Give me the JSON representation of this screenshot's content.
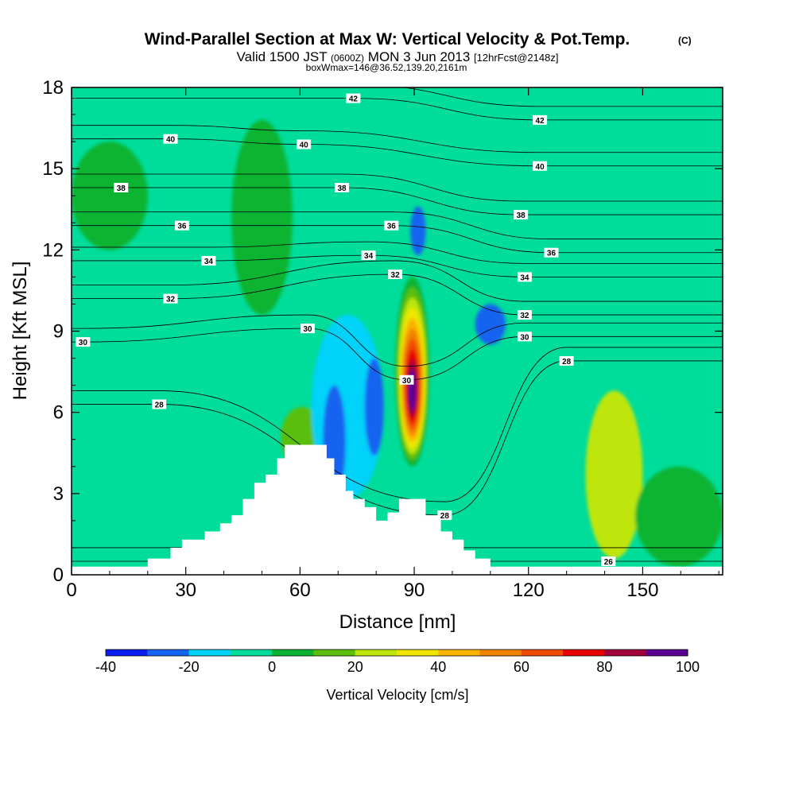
{
  "chart_data": {
    "type": "heatmap",
    "title": "Wind-Parallel Section at Max W: Vertical Velocity & Pot.Temp.",
    "title_mark": "(C)",
    "subtitle": {
      "valid": "Valid 1500 JST",
      "utc": "(0600Z)",
      "date": "MON 3 Jun 2013",
      "forecast": "[12hrFcst@2148z]"
    },
    "subtitle2": "boxWmax=146@36.52,139.20,2161m",
    "xlabel": "Distance [nm]",
    "ylabel": "Height [Kft MSL]",
    "xlim": [
      0,
      171
    ],
    "ylim": [
      0,
      18
    ],
    "xticks": [
      "0",
      "30",
      "60",
      "90",
      "120",
      "150"
    ],
    "yticks": [
      "0",
      "3",
      "6",
      "9",
      "12",
      "15",
      "18"
    ],
    "colorbar": {
      "label": "Vertical Velocity [cm/s]",
      "ticks": [
        "-40",
        "-20",
        "0",
        "20",
        "40",
        "60",
        "80",
        "100"
      ],
      "bounds": [
        -40,
        -30,
        -20,
        -10,
        0,
        10,
        20,
        30,
        40,
        50,
        60,
        70,
        80,
        90,
        100
      ],
      "colors": [
        "#0a1ef0",
        "#1464f0",
        "#00d2fa",
        "#00dc9a",
        "#0ab432",
        "#5abe0a",
        "#bee60a",
        "#f0e600",
        "#fab400",
        "#f08200",
        "#f04b00",
        "#e60000",
        "#a0003c",
        "#5a0096"
      ]
    },
    "background_class": {
      "range": [
        -10,
        0
      ],
      "color": "#00dc9a"
    },
    "updraft_regions": [
      {
        "x_range": [
          0,
          20
        ],
        "y_range": [
          12,
          16
        ],
        "w_class": [
          0,
          10
        ]
      },
      {
        "x_range": [
          42,
          58
        ],
        "y_range": [
          9.6,
          16.8
        ],
        "w_class": [
          0,
          10
        ]
      },
      {
        "x_range": [
          55,
          66
        ],
        "y_range": [
          4,
          6.2
        ],
        "w_class": [
          10,
          20
        ]
      },
      {
        "x_range": [
          135,
          150
        ],
        "y_range": [
          0.6,
          6.8
        ],
        "w_class": [
          20,
          30
        ]
      },
      {
        "x_range": [
          85,
          94
        ],
        "y_range": [
          4,
          11
        ],
        "w_class": [
          90,
          100
        ],
        "core_max_cm_s": 146
      },
      {
        "x_range": [
          148,
          171
        ],
        "y_range": [
          0.3,
          4
        ],
        "w_class": [
          0,
          10
        ]
      }
    ],
    "downdraft_regions": [
      {
        "x_range": [
          63,
          82
        ],
        "y_range": [
          2.8,
          9.6
        ],
        "w_class": [
          -20,
          -10
        ]
      },
      {
        "x_range": [
          66,
          72
        ],
        "y_range": [
          2.8,
          7
        ],
        "w_class": [
          -30,
          -20
        ]
      },
      {
        "x_range": [
          77,
          82
        ],
        "y_range": [
          4.4,
          8
        ],
        "w_class": [
          -30,
          -20
        ]
      },
      {
        "x_range": [
          89,
          93
        ],
        "y_range": [
          11.8,
          13.6
        ],
        "w_class": [
          -30,
          -20
        ]
      },
      {
        "x_range": [
          106,
          114
        ],
        "y_range": [
          8.5,
          10
        ],
        "w_class": [
          -30,
          -20
        ]
      }
    ],
    "terrain": [
      {
        "x": 0,
        "y": 0.3
      },
      {
        "x": 19,
        "y": 0.3
      },
      {
        "x": 20,
        "y": 0.6
      },
      {
        "x": 26,
        "y": 1.0
      },
      {
        "x": 29,
        "y": 1.3
      },
      {
        "x": 35,
        "y": 1.6
      },
      {
        "x": 39,
        "y": 1.9
      },
      {
        "x": 42,
        "y": 2.2
      },
      {
        "x": 45,
        "y": 2.8
      },
      {
        "x": 48,
        "y": 3.4
      },
      {
        "x": 51,
        "y": 3.7
      },
      {
        "x": 54,
        "y": 4.3
      },
      {
        "x": 56,
        "y": 4.8
      },
      {
        "x": 65,
        "y": 4.8
      },
      {
        "x": 67,
        "y": 4.3
      },
      {
        "x": 69,
        "y": 3.7
      },
      {
        "x": 72,
        "y": 3.1
      },
      {
        "x": 74,
        "y": 2.8
      },
      {
        "x": 77,
        "y": 2.5
      },
      {
        "x": 80,
        "y": 2.0
      },
      {
        "x": 83,
        "y": 2.3
      },
      {
        "x": 86,
        "y": 2.8
      },
      {
        "x": 90,
        "y": 2.8
      },
      {
        "x": 93,
        "y": 2.2
      },
      {
        "x": 97,
        "y": 1.6
      },
      {
        "x": 100,
        "y": 1.3
      },
      {
        "x": 103,
        "y": 0.9
      },
      {
        "x": 106,
        "y": 0.6
      },
      {
        "x": 110,
        "y": 0.3
      },
      {
        "x": 171,
        "y": 0.3
      }
    ],
    "theta_contours": [
      {
        "value": "26",
        "label_at": [
          141,
          0.5
        ]
      },
      {
        "value": "28",
        "label_at": [
          23,
          6.3
        ]
      },
      {
        "value": "28",
        "label_at": [
          98,
          2.2
        ]
      },
      {
        "value": "28",
        "label_at": [
          130,
          7.9
        ]
      },
      {
        "value": "30",
        "label_at": [
          3,
          8.6
        ]
      },
      {
        "value": "30",
        "label_at": [
          62,
          9.1
        ]
      },
      {
        "value": "30",
        "label_at": [
          88,
          7.2
        ]
      },
      {
        "value": "30",
        "label_at": [
          119,
          8.8
        ]
      },
      {
        "value": "32",
        "label_at": [
          26,
          10.2
        ]
      },
      {
        "value": "32",
        "label_at": [
          85,
          11.1
        ]
      },
      {
        "value": "32",
        "label_at": [
          119,
          9.6
        ]
      },
      {
        "value": "34",
        "label_at": [
          36,
          11.6
        ]
      },
      {
        "value": "34",
        "label_at": [
          78,
          11.8
        ]
      },
      {
        "value": "34",
        "label_at": [
          119,
          11
        ]
      },
      {
        "value": "36",
        "label_at": [
          29,
          12.9
        ]
      },
      {
        "value": "36",
        "label_at": [
          84,
          12.9
        ]
      },
      {
        "value": "36",
        "label_at": [
          126,
          11.9
        ]
      },
      {
        "value": "38",
        "label_at": [
          13,
          14.3
        ]
      },
      {
        "value": "38",
        "label_at": [
          71,
          14.3
        ]
      },
      {
        "value": "38",
        "label_at": [
          118,
          13.3
        ]
      },
      {
        "value": "40",
        "label_at": [
          26,
          16.1
        ]
      },
      {
        "value": "40",
        "label_at": [
          61,
          15.9
        ]
      },
      {
        "value": "40",
        "label_at": [
          123,
          15.1
        ]
      },
      {
        "value": "42",
        "label_at": [
          123,
          16.8
        ]
      },
      {
        "value": "42",
        "label_at": [
          74,
          17.6
        ]
      }
    ]
  }
}
